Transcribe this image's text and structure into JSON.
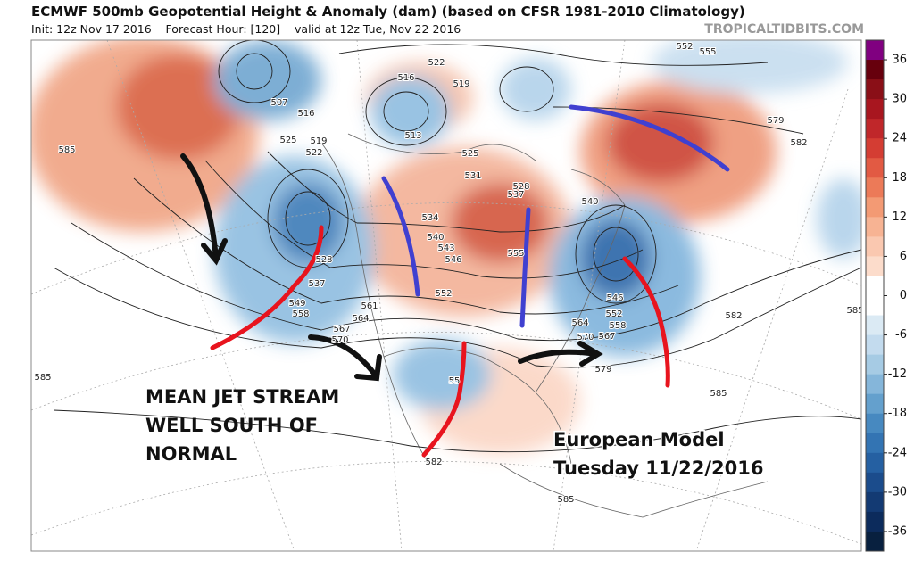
{
  "header": {
    "title": "ECMWF 500mb Geopotential Height & Anomaly (dam) (based on CFSR 1981-2010 Climatology)",
    "subtitle": "Init: 12z Nov 17 2016    Forecast Hour: [120]    valid at 12z Tue, Nov 22 2016",
    "credit": "TROPICALTIDBITS.COM"
  },
  "annotations": {
    "jet": [
      "MEAN JET STREAM",
      "WELL SOUTH OF",
      "NORMAL"
    ],
    "model": [
      "European Model",
      "Tuesday 11/22/2016"
    ]
  },
  "contour_labels": [
    "585",
    "507",
    "516",
    "525",
    "519",
    "522",
    "516",
    "513",
    "522",
    "519",
    "525",
    "531",
    "528",
    "537",
    "534",
    "540",
    "543",
    "546",
    "552",
    "555",
    "528",
    "537",
    "549",
    "558",
    "561",
    "564",
    "567",
    "570",
    "552",
    "558",
    "564",
    "570",
    "567",
    "579",
    "582",
    "585",
    "585",
    "579",
    "582",
    "552",
    "555",
    "540",
    "546",
    "585",
    "585",
    "582",
    "55"
  ],
  "colorbar": {
    "lim": [
      -39,
      39
    ],
    "ticks": [
      36,
      30,
      24,
      18,
      12,
      6,
      0,
      -6,
      -12,
      -18,
      -24,
      -30,
      -36
    ],
    "colors": [
      "#800080",
      "#67000d",
      "#8a0f17",
      "#a8161f",
      "#c0272a",
      "#d43d33",
      "#e25a43",
      "#ec7a58",
      "#f39a74",
      "#f7b393",
      "#fac8b0",
      "#fcdccb",
      "#ffffff",
      "#ffffff",
      "#dbeaf4",
      "#c3dbee",
      "#a6cbe4",
      "#85b6da",
      "#64a0cd",
      "#4789c0",
      "#3374b3",
      "#2560a2",
      "#1b4c8c",
      "#133a73",
      "#0c2b5c",
      "#08203f"
    ]
  }
}
